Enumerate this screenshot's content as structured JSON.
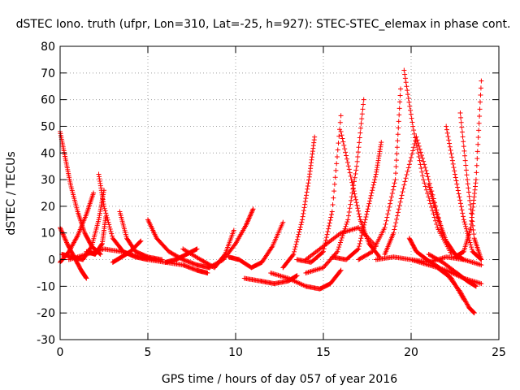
{
  "chart_data": {
    "type": "scatter",
    "title": "dSTEC Iono. truth (ufpr, Lon=310, Lat=-25, h=927): STEC-STEC_elemax in phase cont.",
    "xlabel": "GPS time / hours of day 057 of year 2016",
    "ylabel": "dSTEC  / TECUs",
    "xlim": [
      0,
      25
    ],
    "ylim": [
      -30,
      80
    ],
    "xticks": [
      0,
      5,
      10,
      15,
      20,
      25
    ],
    "yticks": [
      -30,
      -20,
      -10,
      0,
      10,
      20,
      30,
      40,
      50,
      60,
      70,
      80
    ],
    "grid": true,
    "marker": "+",
    "color": "#ff0000",
    "series": [
      {
        "x": [
          0.0,
          0.3,
          0.6,
          1.0,
          1.4,
          1.8,
          2.3
        ],
        "y": [
          48,
          38,
          28,
          18,
          10,
          5,
          2
        ]
      },
      {
        "x": [
          0.0,
          0.4,
          0.8,
          1.2,
          1.5
        ],
        "y": [
          12,
          6,
          1,
          -4,
          -7
        ]
      },
      {
        "x": [
          0.0,
          0.5,
          1.0,
          1.5,
          1.9
        ],
        "y": [
          -1,
          3,
          9,
          17,
          25
        ]
      },
      {
        "x": [
          0.1,
          0.7,
          1.3,
          1.8,
          2.2,
          2.5
        ],
        "y": [
          2,
          1,
          0,
          5,
          15,
          26
        ]
      },
      {
        "x": [
          2.2,
          2.5,
          3.0,
          3.6,
          4.3,
          5.0
        ],
        "y": [
          32,
          20,
          8,
          3,
          1,
          0
        ]
      },
      {
        "x": [
          1.5,
          2.0,
          2.4,
          2.6
        ],
        "y": [
          3,
          2,
          6,
          16
        ]
      },
      {
        "x": [
          3.4,
          3.8,
          4.3,
          5.0,
          5.8
        ],
        "y": [
          18,
          8,
          3,
          1,
          0
        ]
      },
      {
        "x": [
          3.0,
          3.5,
          4.0,
          4.6
        ],
        "y": [
          -1,
          1,
          3,
          7
        ]
      },
      {
        "x": [
          5.0,
          5.5,
          6.2,
          7.0,
          7.8,
          8.5
        ],
        "y": [
          15,
          8,
          3,
          0,
          -2,
          -3
        ]
      },
      {
        "x": [
          5.0,
          6.0,
          7.0,
          7.8,
          8.4
        ],
        "y": [
          0,
          -1,
          -2,
          -4,
          -5
        ]
      },
      {
        "x": [
          6.0,
          6.6,
          7.2,
          7.8
        ],
        "y": [
          -1,
          0,
          2,
          4
        ]
      },
      {
        "x": [
          7.0,
          8.0,
          8.8,
          9.4,
          9.9
        ],
        "y": [
          4,
          0,
          -3,
          2,
          11
        ]
      },
      {
        "x": [
          8.5,
          9.3,
          10.0,
          10.6,
          11.0
        ],
        "y": [
          -3,
          0,
          6,
          13,
          19
        ]
      },
      {
        "x": [
          9.6,
          10.2,
          10.9,
          11.5,
          12.1,
          12.7
        ],
        "y": [
          1,
          0,
          -3,
          -1,
          5,
          14
        ]
      },
      {
        "x": [
          10.5,
          11.4,
          12.2,
          13.0,
          13.5
        ],
        "y": [
          -7,
          -8,
          -9,
          -8,
          -6
        ]
      },
      {
        "x": [
          12.0,
          13.0,
          14.0,
          14.8,
          15.4,
          16.0
        ],
        "y": [
          -5,
          -7,
          -10,
          -11,
          -9,
          -4
        ]
      },
      {
        "x": [
          12.7,
          13.3,
          13.8,
          14.2,
          14.5
        ],
        "y": [
          -3,
          2,
          15,
          31,
          46
        ]
      },
      {
        "x": [
          13.5,
          14.3,
          15.0,
          15.5,
          16.0
        ],
        "y": [
          0,
          -1,
          3,
          18,
          54
        ]
      },
      {
        "x": [
          14.0,
          15.0,
          15.8,
          16.4,
          16.9,
          17.3
        ],
        "y": [
          -5,
          -3,
          3,
          15,
          35,
          60
        ]
      },
      {
        "x": [
          15.5,
          16.3,
          17.0,
          17.5,
          18.0,
          18.3
        ],
        "y": [
          1,
          0,
          4,
          18,
          32,
          44
        ]
      },
      {
        "x": [
          16.0,
          16.6,
          17.1,
          17.6,
          18.2
        ],
        "y": [
          48,
          30,
          15,
          6,
          1
        ]
      },
      {
        "x": [
          17.0,
          17.8,
          18.5,
          19.1,
          19.4
        ],
        "y": [
          0,
          3,
          12,
          30,
          64
        ]
      },
      {
        "x": [
          18.5,
          19.0,
          19.6,
          20.3,
          21.0,
          21.8
        ],
        "y": [
          2,
          10,
          28,
          46,
          30,
          10
        ]
      },
      {
        "x": [
          19.6,
          20.1,
          20.7,
          21.5,
          22.3
        ],
        "y": [
          71,
          50,
          30,
          12,
          2
        ]
      },
      {
        "x": [
          19.9,
          20.3,
          20.9,
          21.6,
          22.3,
          23.0
        ],
        "y": [
          8,
          3,
          0,
          -3,
          -7,
          -15
        ]
      },
      {
        "x": [
          21.5,
          22.1,
          22.8,
          23.3,
          23.6
        ],
        "y": [
          -3,
          -6,
          -12,
          -18,
          -20
        ]
      },
      {
        "x": [
          21.0,
          21.5,
          22.0,
          22.5,
          23.0
        ],
        "y": [
          28,
          16,
          7,
          2,
          0
        ]
      },
      {
        "x": [
          22.0,
          22.5,
          23.0,
          23.5,
          24.0
        ],
        "y": [
          50,
          32,
          15,
          3,
          0
        ]
      },
      {
        "x": [
          22.5,
          23.0,
          23.4,
          23.7,
          24.0
        ],
        "y": [
          1,
          3,
          12,
          30,
          67
        ]
      },
      {
        "x": [
          21.0,
          21.8,
          22.6,
          23.2,
          23.7
        ],
        "y": [
          2,
          -1,
          -5,
          -8,
          -10
        ]
      },
      {
        "x": [
          20.0,
          21.0,
          22.0,
          23.0,
          24.0
        ],
        "y": [
          0,
          -2,
          -4,
          -7,
          -9
        ]
      },
      {
        "x": [
          14.0,
          15.0,
          16.0,
          17.0,
          18.0
        ],
        "y": [
          0,
          5,
          10,
          12,
          5
        ]
      },
      {
        "x": [
          18.0,
          19.0,
          20.0,
          21.0,
          22.0,
          23.0,
          24.0
        ],
        "y": [
          0,
          1,
          0,
          -1,
          1,
          0,
          -2
        ]
      },
      {
        "x": [
          22.8,
          23.2,
          23.6,
          24.0
        ],
        "y": [
          55,
          30,
          8,
          0
        ]
      },
      {
        "x": [
          0.5,
          1.5,
          2.5,
          3.5,
          4.5,
          5.5
        ],
        "y": [
          0,
          2,
          4,
          3,
          1,
          0
        ]
      }
    ]
  }
}
